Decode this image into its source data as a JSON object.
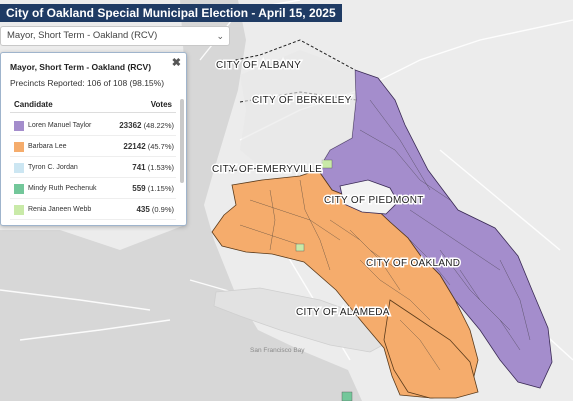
{
  "title": "City of Oakland Special Municipal Election - April 15, 2025",
  "race_select": {
    "selected": "Mayor, Short Term - Oakland (RCV)",
    "chevron_icon": "chevron-down-icon"
  },
  "panel": {
    "race_name": "Mayor, Short Term - Oakland (RCV)",
    "precincts_reported": "Precincts Reported: 106 of 108 (98.15%)",
    "header_candidate": "Candidate",
    "header_votes": "Votes",
    "close_icon": "close-icon",
    "candidates": [
      {
        "name": "Loren Manuel Taylor",
        "votes": "23362",
        "pct": "(48.22%)",
        "color": "#a48dcc"
      },
      {
        "name": "Barbara Lee",
        "votes": "22142",
        "pct": "(45.7%)",
        "color": "#f5ac6c"
      },
      {
        "name": "Tyron C. Jordan",
        "votes": "741",
        "pct": "(1.53%)",
        "color": "#cce6f2"
      },
      {
        "name": "Mindy Ruth Pechenuk",
        "votes": "559",
        "pct": "(1.15%)",
        "color": "#73c79a"
      },
      {
        "name": "Renia Janeen Webb",
        "votes": "435",
        "pct": "(0.9%)",
        "color": "#c9eaa8"
      }
    ]
  },
  "map": {
    "labels": {
      "albany": "CITY OF ALBANY",
      "berkeley": "CITY OF BERKELEY",
      "emeryville": "CITY OF EMERYVILLE",
      "piedmont": "CITY OF PIEDMONT",
      "oakland": "CITY OF OAKLAND",
      "alameda": "CITY OF ALAMEDA",
      "bay": "San Francisco Bay"
    },
    "colors": {
      "water": "#d6d6d6",
      "land": "#ececec",
      "taylor": "#a48dcc",
      "lee": "#f5ac6c"
    }
  }
}
